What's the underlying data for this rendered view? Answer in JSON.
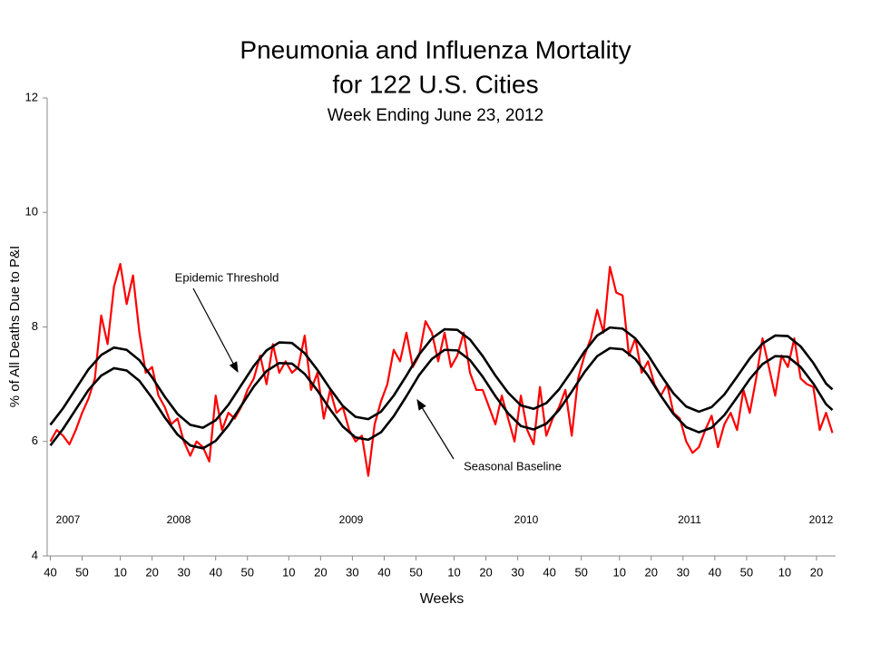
{
  "chart_data": {
    "type": "line",
    "title": "Pneumonia and Influenza Mortality",
    "title_line2": "for 122 U.S. Cities",
    "subtitle": "Week Ending June 23, 2012",
    "y_label": "% of All Deaths Due to P&I",
    "x_label": "Weeks",
    "annotations": [
      "Epidemic Threshold",
      "Seasonal Baseline"
    ],
    "year_labels": [
      "2007",
      "2008",
      "2009",
      "2010",
      "2011",
      "2012"
    ],
    "grid": false,
    "xlim": [
      -1,
      247
    ],
    "ylim": [
      4,
      12
    ],
    "yticks": [
      4,
      6,
      8,
      10,
      12
    ],
    "xticks": [
      {
        "value": 0,
        "label": "40"
      },
      {
        "value": 10,
        "label": "50"
      },
      {
        "value": 22,
        "label": "10"
      },
      {
        "value": 32,
        "label": "20"
      },
      {
        "value": 42,
        "label": "30"
      },
      {
        "value": 52,
        "label": "40"
      },
      {
        "value": 62,
        "label": "50"
      },
      {
        "value": 75,
        "label": "10"
      },
      {
        "value": 85,
        "label": "20"
      },
      {
        "value": 95,
        "label": "30"
      },
      {
        "value": 105,
        "label": "40"
      },
      {
        "value": 115,
        "label": "50"
      },
      {
        "value": 127,
        "label": "10"
      },
      {
        "value": 137,
        "label": "20"
      },
      {
        "value": 147,
        "label": "30"
      },
      {
        "value": 157,
        "label": "40"
      },
      {
        "value": 167,
        "label": "50"
      },
      {
        "value": 179,
        "label": "10"
      },
      {
        "value": 189,
        "label": "20"
      },
      {
        "value": 199,
        "label": "30"
      },
      {
        "value": 209,
        "label": "40"
      },
      {
        "value": 219,
        "label": "50"
      },
      {
        "value": 231,
        "label": "10"
      },
      {
        "value": 241,
        "label": "20"
      }
    ],
    "series": [
      {
        "color": "#ff0000",
        "x": [
          0,
          2,
          4,
          6,
          8,
          10,
          12,
          14,
          16,
          18,
          20,
          22,
          24,
          26,
          28,
          30,
          32,
          34,
          36,
          38,
          40,
          42,
          44,
          46,
          48,
          50,
          52,
          54,
          56,
          58,
          60,
          62,
          64,
          66,
          68,
          70,
          72,
          74,
          76,
          78,
          80,
          82,
          84,
          86,
          88,
          90,
          92,
          94,
          96,
          98,
          100,
          102,
          104,
          106,
          108,
          110,
          112,
          114,
          116,
          118,
          120,
          122,
          124,
          126,
          128,
          130,
          132,
          134,
          136,
          138,
          140,
          142,
          144,
          146,
          148,
          150,
          152,
          154,
          156,
          158,
          160,
          162,
          164,
          166,
          168,
          170,
          172,
          174,
          176,
          178,
          180,
          182,
          184,
          186,
          188,
          190,
          192,
          194,
          196,
          198,
          200,
          202,
          204,
          206,
          208,
          210,
          212,
          214,
          216,
          218,
          220,
          222,
          224,
          226,
          228,
          230,
          232,
          234,
          236,
          238,
          240,
          242,
          244,
          246
        ],
        "values": [
          6.0,
          6.2,
          6.1,
          5.95,
          6.2,
          6.5,
          6.75,
          7.1,
          8.2,
          7.7,
          8.7,
          9.1,
          8.4,
          8.9,
          7.9,
          7.2,
          7.3,
          6.8,
          6.6,
          6.3,
          6.4,
          6.0,
          5.75,
          6.0,
          5.9,
          5.65,
          6.8,
          6.2,
          6.5,
          6.4,
          6.6,
          6.9,
          7.1,
          7.5,
          7.0,
          7.7,
          7.2,
          7.4,
          7.2,
          7.3,
          7.85,
          6.9,
          7.2,
          6.4,
          6.9,
          6.5,
          6.6,
          6.2,
          6.0,
          6.1,
          5.4,
          6.3,
          6.7,
          7.0,
          7.6,
          7.4,
          7.9,
          7.3,
          7.5,
          8.1,
          7.9,
          7.4,
          7.9,
          7.3,
          7.5,
          7.9,
          7.2,
          6.9,
          6.9,
          6.6,
          6.3,
          6.8,
          6.4,
          6.0,
          6.8,
          6.2,
          5.95,
          6.95,
          6.1,
          6.4,
          6.6,
          6.9,
          6.1,
          7.1,
          7.5,
          7.8,
          8.3,
          7.9,
          9.05,
          8.6,
          8.55,
          7.5,
          7.8,
          7.2,
          7.4,
          7.0,
          6.8,
          7.0,
          6.5,
          6.4,
          6.0,
          5.8,
          5.9,
          6.2,
          6.45,
          5.9,
          6.3,
          6.5,
          6.2,
          6.9,
          6.5,
          7.1,
          7.8,
          7.3,
          6.8,
          7.5,
          7.3,
          7.8,
          7.1,
          7.0,
          6.95,
          6.2,
          6.5,
          6.15
        ]
      },
      {
        "color": "#000000",
        "x": [
          0,
          4,
          8,
          12,
          16,
          20,
          24,
          28,
          32,
          36,
          40,
          44,
          48,
          52,
          56,
          60,
          64,
          68,
          72,
          76,
          80,
          84,
          88,
          92,
          96,
          100,
          104,
          108,
          112,
          116,
          120,
          124,
          128,
          132,
          136,
          140,
          144,
          148,
          152,
          156,
          160,
          164,
          168,
          172,
          176,
          180,
          184,
          188,
          192,
          196,
          200,
          204,
          208,
          212,
          216,
          220,
          224,
          228,
          232,
          236,
          240,
          244,
          246
        ],
        "values": [
          6.29,
          6.58,
          6.92,
          7.26,
          7.51,
          7.64,
          7.6,
          7.42,
          7.12,
          6.78,
          6.48,
          6.29,
          6.24,
          6.37,
          6.64,
          6.98,
          7.32,
          7.59,
          7.73,
          7.72,
          7.54,
          7.25,
          6.92,
          6.62,
          6.43,
          6.39,
          6.52,
          6.8,
          7.15,
          7.52,
          7.8,
          7.96,
          7.95,
          7.78,
          7.49,
          7.15,
          6.85,
          6.63,
          6.57,
          6.67,
          6.91,
          7.23,
          7.57,
          7.85,
          7.99,
          7.97,
          7.8,
          7.51,
          7.16,
          6.84,
          6.61,
          6.52,
          6.6,
          6.82,
          7.13,
          7.45,
          7.71,
          7.85,
          7.84,
          7.66,
          7.37,
          7.01,
          6.91
        ]
      },
      {
        "color": "#000000",
        "x": [
          0,
          4,
          8,
          12,
          16,
          20,
          24,
          28,
          32,
          36,
          40,
          44,
          48,
          52,
          56,
          60,
          64,
          68,
          72,
          76,
          80,
          84,
          88,
          92,
          96,
          100,
          104,
          108,
          112,
          116,
          120,
          124,
          128,
          132,
          136,
          140,
          144,
          148,
          152,
          156,
          160,
          164,
          168,
          172,
          176,
          180,
          184,
          188,
          192,
          196,
          200,
          204,
          208,
          212,
          216,
          220,
          224,
          228,
          232,
          236,
          240,
          244,
          246
        ],
        "values": [
          5.93,
          6.22,
          6.56,
          6.9,
          7.15,
          7.28,
          7.24,
          7.06,
          6.76,
          6.42,
          6.12,
          5.93,
          5.88,
          6.01,
          6.28,
          6.62,
          6.96,
          7.23,
          7.37,
          7.36,
          7.18,
          6.89,
          6.56,
          6.26,
          6.07,
          6.03,
          6.16,
          6.44,
          6.79,
          7.16,
          7.44,
          7.6,
          7.59,
          7.42,
          7.13,
          6.79,
          6.49,
          6.27,
          6.21,
          6.31,
          6.55,
          6.87,
          7.21,
          7.49,
          7.63,
          7.61,
          7.44,
          7.15,
          6.8,
          6.48,
          6.25,
          6.16,
          6.24,
          6.46,
          6.77,
          7.09,
          7.35,
          7.49,
          7.48,
          7.3,
          7.01,
          6.65,
          6.55
        ]
      }
    ]
  }
}
